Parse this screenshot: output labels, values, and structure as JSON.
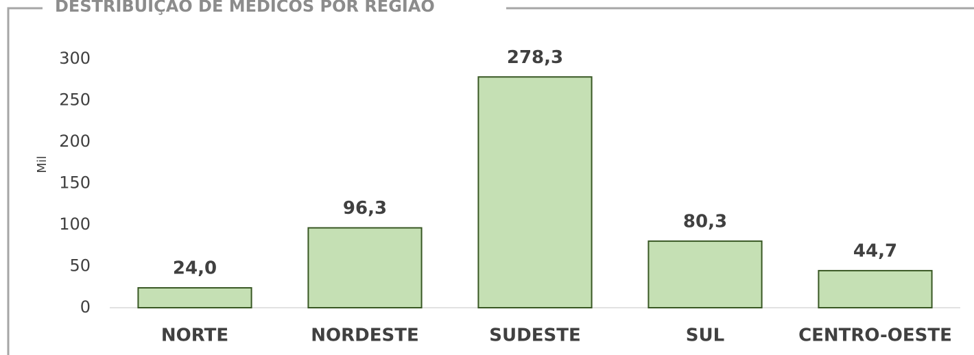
{
  "chart_data": {
    "type": "bar",
    "title": "DESTRIBUIÇÃO DE MÉDICOS POR REGIÃO",
    "y_label": "Mil",
    "categories": [
      "NORTE",
      "NORDESTE",
      "SUDESTE",
      "SUL",
      "CENTRO-OESTE"
    ],
    "values": [
      24.0,
      96.3,
      278.3,
      80.3,
      44.7
    ],
    "value_labels": [
      "24,0",
      "96,3",
      "278,3",
      "80,3",
      "44,7"
    ],
    "color": "#c5e0b4",
    "edge_color": "#385723",
    "ylim": [
      0,
      300
    ],
    "yticks": [
      0,
      50,
      100,
      150,
      200,
      250,
      300
    ],
    "grid": false
  }
}
